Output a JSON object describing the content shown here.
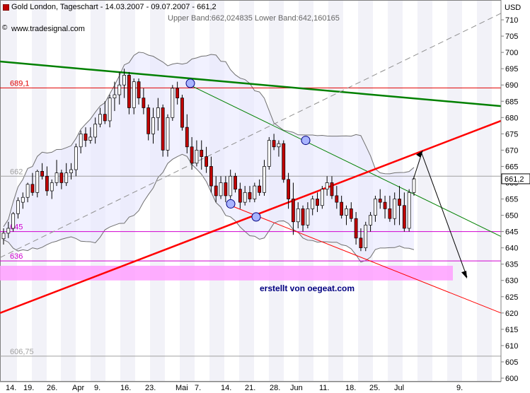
{
  "header": {
    "title": "Gold London, Tageschart - 14.03.2007 - 09.07.2007 - 661,2",
    "bands": "Upper Band:662,024835 Lower Band:642,160165",
    "source": "www.tradesignal.com",
    "copyright_symbol": "©"
  },
  "annotation": {
    "credit": "erstellt von oegeat.com"
  },
  "chart_data": {
    "type": "candlestick",
    "currency": "USD",
    "ylim": [
      600,
      715
    ],
    "y_ticks": [
      600,
      605,
      610,
      615,
      620,
      625,
      630,
      635,
      640,
      645,
      650,
      655,
      660,
      665,
      670,
      675,
      680,
      685,
      690,
      695,
      700,
      705,
      710
    ],
    "x_tick_labels": [
      "14.",
      "19.",
      "26.",
      "Apr",
      "9.",
      "16.",
      "23.",
      "Mai",
      "7.",
      "14.",
      "21.",
      "28.",
      "Jun",
      "11.",
      "18.",
      "25.",
      "Jul",
      "9."
    ],
    "last_price_label": "661,2",
    "last_price": 661.2,
    "horizontal_levels": [
      {
        "label": "689,1",
        "value": 689.1,
        "color": "#e00000"
      },
      {
        "label": "662",
        "value": 662,
        "color": "#a0a0a0"
      },
      {
        "label": "645",
        "value": 645,
        "color": "#d000d0"
      },
      {
        "label": "636",
        "value": 636,
        "color": "#d000d0"
      },
      {
        "label": "606,75",
        "value": 606.75,
        "color": "#a0a0a0"
      }
    ],
    "support_zone": [
      630,
      634.5
    ],
    "candles": [
      [
        642.8,
        646,
        641,
        644.5
      ],
      [
        644.5,
        648,
        643,
        646
      ],
      [
        646,
        651,
        645,
        650.5
      ],
      [
        650.5,
        655.5,
        649,
        654.5
      ],
      [
        654,
        657,
        652,
        655.5
      ],
      [
        655.5,
        660,
        654,
        659.5
      ],
      [
        659.5,
        663,
        656,
        657
      ],
      [
        657,
        664,
        655.5,
        663.5
      ],
      [
        663.5,
        666,
        661,
        662
      ],
      [
        662,
        665,
        656,
        657.5
      ],
      [
        657.5,
        661,
        655,
        660
      ],
      [
        660,
        667,
        659,
        663
      ],
      [
        663,
        664,
        658,
        660
      ],
      [
        660,
        666,
        659,
        663
      ],
      [
        663,
        666,
        661,
        664
      ],
      [
        664,
        672,
        662,
        671
      ],
      [
        671,
        676,
        669,
        675
      ],
      [
        675,
        677,
        671,
        673
      ],
      [
        673,
        677,
        672,
        674
      ],
      [
        674,
        680,
        672,
        678
      ],
      [
        678,
        683,
        677,
        681
      ],
      [
        681,
        685,
        678,
        679
      ],
      [
        679,
        687,
        677,
        686
      ],
      [
        686,
        691,
        682,
        687
      ],
      [
        687,
        694,
        684,
        690
      ],
      [
        690,
        695,
        686,
        693
      ],
      [
        693,
        694,
        681,
        683
      ],
      [
        683,
        692,
        681,
        691
      ],
      [
        691,
        692,
        684,
        686
      ],
      [
        686,
        689,
        681,
        683
      ],
      [
        683,
        684,
        673,
        675
      ],
      [
        675,
        683,
        672,
        680
      ],
      [
        680,
        686,
        676,
        683
      ],
      [
        683,
        684,
        668,
        670
      ],
      [
        670,
        681,
        668,
        680
      ],
      [
        680,
        690,
        679,
        689
      ],
      [
        689,
        691,
        684,
        686
      ],
      [
        686,
        687,
        676,
        677
      ],
      [
        677,
        681,
        669,
        671
      ],
      [
        671,
        674,
        664,
        666
      ],
      [
        666,
        673,
        665,
        670
      ],
      [
        670,
        673,
        664,
        668
      ],
      [
        668,
        671,
        663,
        665
      ],
      [
        665,
        668,
        657,
        659
      ],
      [
        659,
        662,
        654,
        656
      ],
      [
        656,
        662,
        655,
        660
      ],
      [
        660,
        662,
        654,
        656
      ],
      [
        656,
        664,
        655,
        662
      ],
      [
        662,
        663,
        657,
        658
      ],
      [
        658,
        660,
        652,
        654
      ],
      [
        654,
        659,
        653,
        657
      ],
      [
        657,
        659,
        654,
        655
      ],
      [
        655,
        660,
        654,
        659
      ],
      [
        659,
        661,
        656,
        657
      ],
      [
        657,
        667,
        656,
        665
      ],
      [
        665,
        674,
        664,
        673
      ],
      [
        673,
        675,
        670,
        671
      ],
      [
        671,
        673,
        668,
        672
      ],
      [
        672,
        673,
        660,
        661
      ],
      [
        661,
        663,
        652,
        655
      ],
      [
        655,
        660,
        644,
        648
      ],
      [
        648,
        654,
        646,
        652
      ],
      [
        652,
        653,
        645,
        647
      ],
      [
        647,
        654,
        646,
        652
      ],
      [
        652,
        656,
        650,
        655
      ],
      [
        655,
        657,
        651,
        653
      ],
      [
        653,
        659,
        652,
        658
      ],
      [
        658,
        662,
        656,
        660
      ],
      [
        660,
        662,
        655,
        656
      ],
      [
        656,
        659,
        652,
        654
      ],
      [
        654,
        656,
        649,
        650
      ],
      [
        650,
        653,
        647,
        652
      ],
      [
        652,
        654,
        648,
        649
      ],
      [
        649,
        651,
        641,
        643
      ],
      [
        643,
        646,
        639,
        640
      ],
      [
        640,
        648,
        639,
        647
      ],
      [
        647,
        651,
        645,
        650
      ],
      [
        650,
        656,
        648,
        655
      ],
      [
        655,
        658,
        652,
        654
      ],
      [
        654,
        656,
        649,
        652
      ],
      [
        652,
        656,
        648,
        649
      ],
      [
        649,
        657,
        647,
        655
      ],
      [
        655,
        659,
        647,
        653
      ],
      [
        653,
        657,
        645,
        646
      ],
      [
        646,
        658,
        645,
        657
      ],
      [
        657,
        662,
        656,
        661.2
      ]
    ]
  },
  "colors": {
    "up_candle": "#ffffff",
    "down_candle": "#c00000",
    "band_fill": "#e8e8ff",
    "grey_stripe": "#e6e6ec",
    "resistance_green": "#008000",
    "uptrend_red": "#ff0000",
    "zone_pink": "#ffa0ff"
  }
}
